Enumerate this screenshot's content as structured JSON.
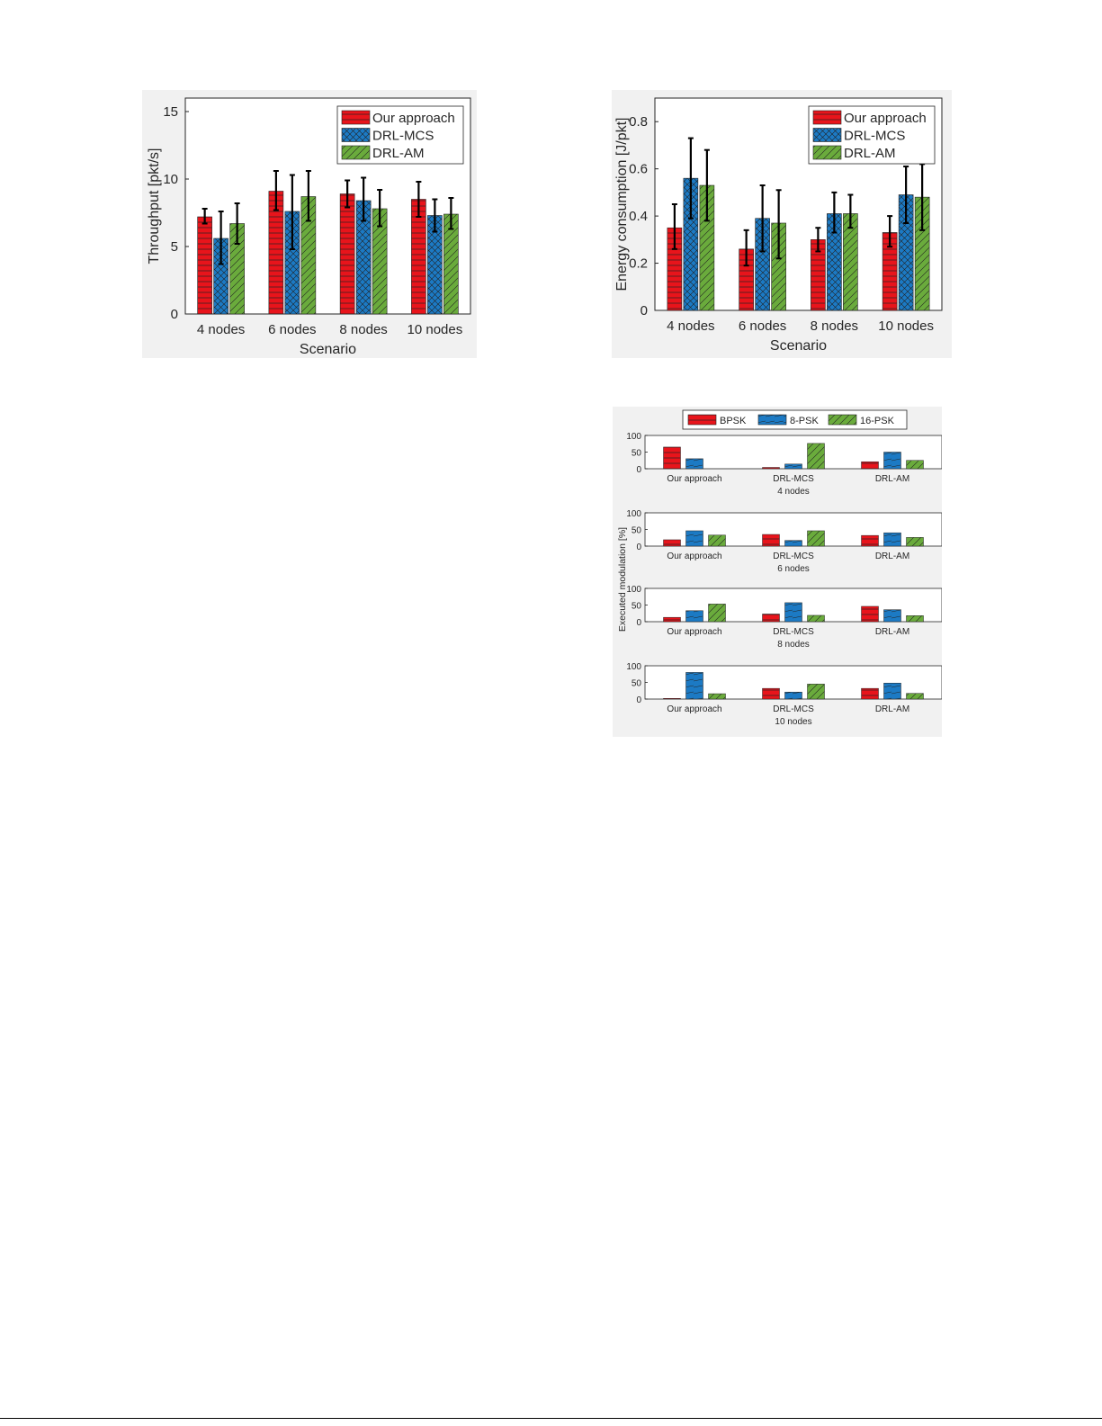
{
  "colors": {
    "our_approach": "#e8141b",
    "drl_mcs": "#1c7ac4",
    "drl_am": "#6aab3c",
    "bpsk": "#e8141b",
    "psk8": "#1c7ac4",
    "psk16": "#6aab3c"
  },
  "chart_data": [
    {
      "id": "throughput",
      "type": "bar",
      "title": "",
      "xlabel": "Scenario",
      "ylabel": "Throughput [pkt/s]",
      "categories": [
        "4 nodes",
        "6 nodes",
        "8 nodes",
        "10 nodes"
      ],
      "ylim": [
        0,
        16
      ],
      "yticks": [
        0,
        5,
        10,
        15
      ],
      "ytick_labels": [
        "0",
        "5",
        "10",
        "15"
      ],
      "grid": false,
      "legend_position": "top-right",
      "series": [
        {
          "name": "Our approach",
          "color": "#e8141b",
          "hatch": "horizontal",
          "values": [
            7.2,
            9.1,
            8.9,
            8.5
          ],
          "err_low": [
            6.7,
            7.7,
            7.9,
            7.2
          ],
          "err_high": [
            7.8,
            10.6,
            9.9,
            9.8
          ]
        },
        {
          "name": "DRL-MCS",
          "color": "#1c7ac4",
          "hatch": "cross",
          "values": [
            5.6,
            7.6,
            8.4,
            7.3
          ],
          "err_low": [
            3.7,
            4.8,
            6.9,
            6.1
          ],
          "err_high": [
            7.6,
            10.3,
            10.1,
            8.5
          ]
        },
        {
          "name": "DRL-AM",
          "color": "#6aab3c",
          "hatch": "diagonal",
          "values": [
            6.7,
            8.7,
            7.8,
            7.4
          ],
          "err_low": [
            5.2,
            6.9,
            6.5,
            6.3
          ],
          "err_high": [
            8.2,
            10.6,
            9.2,
            8.6
          ]
        }
      ]
    },
    {
      "id": "energy",
      "type": "bar",
      "title": "",
      "xlabel": "Scenario",
      "ylabel": "Energy consumption [J/pkt]",
      "categories": [
        "4 nodes",
        "6 nodes",
        "8 nodes",
        "10 nodes"
      ],
      "ylim": [
        0,
        0.9
      ],
      "yticks": [
        0,
        0.2,
        0.4,
        0.6,
        0.8
      ],
      "ytick_labels": [
        "0",
        "0.2",
        "0.4",
        "0.6",
        "0.8"
      ],
      "grid": false,
      "legend_position": "top-right",
      "series": [
        {
          "name": "Our approach",
          "color": "#e8141b",
          "hatch": "horizontal",
          "values": [
            0.35,
            0.26,
            0.3,
            0.33
          ],
          "err_low": [
            0.26,
            0.19,
            0.25,
            0.27
          ],
          "err_high": [
            0.45,
            0.34,
            0.35,
            0.4
          ]
        },
        {
          "name": "DRL-MCS",
          "color": "#1c7ac4",
          "hatch": "cross",
          "values": [
            0.56,
            0.39,
            0.41,
            0.49
          ],
          "err_low": [
            0.39,
            0.25,
            0.33,
            0.37
          ],
          "err_high": [
            0.73,
            0.53,
            0.5,
            0.61
          ]
        },
        {
          "name": "DRL-AM",
          "color": "#6aab3c",
          "hatch": "diagonal",
          "values": [
            0.53,
            0.37,
            0.41,
            0.48
          ],
          "err_low": [
            0.38,
            0.22,
            0.35,
            0.34
          ],
          "err_high": [
            0.68,
            0.51,
            0.49,
            0.62
          ]
        }
      ]
    },
    {
      "id": "modulation",
      "type": "bar",
      "title": "",
      "ylabel": "Executed modulation [%]",
      "legend_position": "top-center",
      "series_names": [
        "BPSK",
        "8-PSK",
        "16-PSK"
      ],
      "series_colors": [
        "#e8141b",
        "#1c7ac4",
        "#6aab3c"
      ],
      "ylim": [
        0,
        100
      ],
      "yticks": [
        0,
        50,
        100
      ],
      "ytick_labels": [
        "0",
        "50",
        "100"
      ],
      "grid": false,
      "panels": [
        {
          "xlabel": "4 nodes",
          "categories": [
            "Our approach",
            "DRL-MCS",
            "DRL-AM"
          ],
          "values": [
            [
              65,
              30,
              0
            ],
            [
              4,
              14,
              76
            ],
            [
              21,
              50,
              25
            ]
          ]
        },
        {
          "xlabel": "6 nodes",
          "categories": [
            "Our approach",
            "DRL-MCS",
            "DRL-AM"
          ],
          "values": [
            [
              19,
              46,
              33
            ],
            [
              35,
              17,
              46
            ],
            [
              32,
              40,
              26
            ]
          ]
        },
        {
          "xlabel": "8 nodes",
          "categories": [
            "Our approach",
            "DRL-MCS",
            "DRL-AM"
          ],
          "values": [
            [
              13,
              33,
              53
            ],
            [
              23,
              57,
              19
            ],
            [
              46,
              36,
              18
            ]
          ]
        },
        {
          "xlabel": "10 nodes",
          "categories": [
            "Our approach",
            "DRL-MCS",
            "DRL-AM"
          ],
          "values": [
            [
              2,
              80,
              16
            ],
            [
              32,
              21,
              45
            ],
            [
              32,
              48,
              17
            ]
          ]
        }
      ]
    }
  ]
}
